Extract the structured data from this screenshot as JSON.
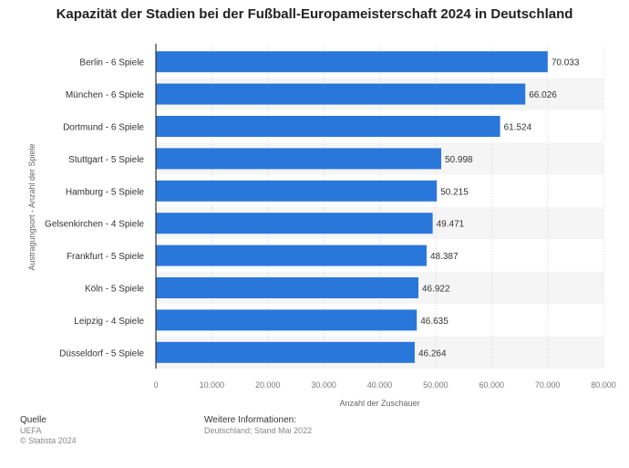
{
  "chart_data": {
    "type": "bar",
    "orientation": "horizontal",
    "title": "Kapazität der Stadien bei der Fußball-Europameisterschaft 2024 in Deutschland",
    "xlabel": "Anzahl der Zuschauer",
    "ylabel": "Austragungsort - Anzahl der Spiele",
    "categories": [
      "Berlin - 6 Spiele",
      "München - 6 Spiele",
      "Dortmund - 6 Spiele",
      "Stuttgart - 5 Spiele",
      "Hamburg - 5 Spiele",
      "Gelsenkirchen - 4 Spiele",
      "Frankfurt - 5 Spiele",
      "Köln - 5 Spiele",
      "Leipzig - 4 Spiele",
      "Düsseldorf - 5 Spiele"
    ],
    "values": [
      70033,
      66026,
      61524,
      50998,
      50215,
      49471,
      48387,
      46922,
      46635,
      46264
    ],
    "value_labels": [
      "70.033",
      "66.026",
      "61.524",
      "50.998",
      "50.215",
      "49.471",
      "48.387",
      "46.922",
      "46.635",
      "46.264"
    ],
    "xlim": [
      0,
      80000
    ],
    "xticks": [
      0,
      10000,
      20000,
      30000,
      40000,
      50000,
      60000,
      70000,
      80000
    ],
    "xtick_labels": [
      "0",
      "10.000",
      "20.000",
      "30.000",
      "40.000",
      "50.000",
      "60.000",
      "70.000",
      "80.000"
    ],
    "bar_color": "#2a77db",
    "grid": true
  },
  "footer": {
    "source_heading": "Quelle",
    "source": "UEFA",
    "copyright": "© Statista 2024",
    "info_heading": "Weitere Informationen:",
    "info": "Deutschland; Stand Mai 2022"
  }
}
